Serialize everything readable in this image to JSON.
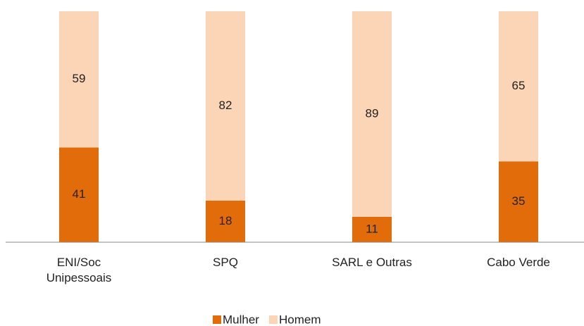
{
  "chart_data": {
    "type": "stacked_bar",
    "categories": [
      "ENI/Soc Unipessoais",
      "SPQ",
      "SARL e Outras",
      "Cabo Verde"
    ],
    "series": [
      {
        "name": "Mulher",
        "color": "#e36c0a",
        "values": [
          41,
          18,
          11,
          35
        ]
      },
      {
        "name": "Homem",
        "color": "#fbd5b5",
        "values": [
          59,
          82,
          89,
          65
        ]
      }
    ],
    "ylim": [
      0,
      100
    ],
    "legend": "bottom"
  }
}
